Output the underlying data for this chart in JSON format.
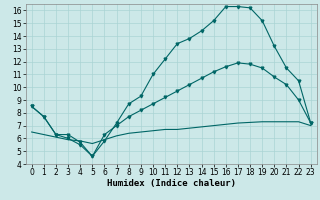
{
  "xlabel": "Humidex (Indice chaleur)",
  "bg_color": "#cce8e8",
  "line_color": "#006666",
  "xlim": [
    -0.5,
    23.5
  ],
  "ylim": [
    4,
    16.5
  ],
  "yticks": [
    4,
    5,
    6,
    7,
    8,
    9,
    10,
    11,
    12,
    13,
    14,
    15,
    16
  ],
  "xticks": [
    0,
    1,
    2,
    3,
    4,
    5,
    6,
    7,
    8,
    9,
    10,
    11,
    12,
    13,
    14,
    15,
    16,
    17,
    18,
    19,
    20,
    21,
    22,
    23
  ],
  "line1_x": [
    0,
    1,
    2,
    3,
    4,
    5,
    6,
    7,
    8,
    9,
    10,
    11,
    12,
    13,
    14,
    15,
    16,
    17,
    18,
    19,
    20,
    21,
    22,
    23
  ],
  "line1_y": [
    8.5,
    7.7,
    6.3,
    6.3,
    5.7,
    4.6,
    5.8,
    7.2,
    8.7,
    9.3,
    11.0,
    12.2,
    13.4,
    13.8,
    14.4,
    15.2,
    16.3,
    16.3,
    16.2,
    15.2,
    13.2,
    11.5,
    10.5,
    7.2
  ],
  "line2_x": [
    0,
    1,
    2,
    3,
    4,
    5,
    6,
    7,
    8,
    9,
    10,
    11,
    12,
    13,
    14,
    15,
    16,
    17,
    18,
    19,
    20,
    21,
    22,
    23
  ],
  "line2_y": [
    8.5,
    7.7,
    6.3,
    6.0,
    5.5,
    4.6,
    6.3,
    7.0,
    7.7,
    8.2,
    8.7,
    9.2,
    9.7,
    10.2,
    10.7,
    11.2,
    11.6,
    11.9,
    11.8,
    11.5,
    10.8,
    10.2,
    9.0,
    7.2
  ],
  "line3_x": [
    0,
    1,
    2,
    3,
    4,
    5,
    6,
    7,
    8,
    9,
    10,
    11,
    12,
    13,
    14,
    15,
    16,
    17,
    18,
    19,
    20,
    21,
    22,
    23
  ],
  "line3_y": [
    6.5,
    6.3,
    6.1,
    5.9,
    5.8,
    5.6,
    5.9,
    6.2,
    6.4,
    6.5,
    6.6,
    6.7,
    6.7,
    6.8,
    6.9,
    7.0,
    7.1,
    7.2,
    7.25,
    7.3,
    7.3,
    7.3,
    7.3,
    7.0
  ],
  "marker": "v",
  "markersize": 2.0,
  "linewidth": 0.8,
  "xlabel_fontsize": 6.5,
  "tick_fontsize": 5.5,
  "grid_color": "#aad4d4",
  "grid_linewidth": 0.5
}
